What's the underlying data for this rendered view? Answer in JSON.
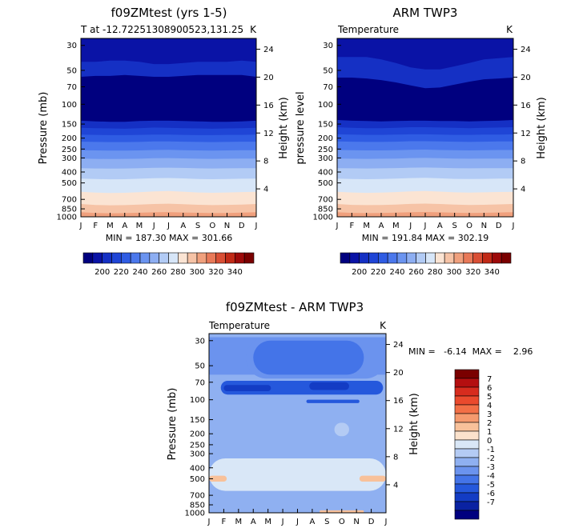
{
  "chart_data": [
    {
      "type": "heatmap",
      "title": "f09ZMtest (yrs 1-5)",
      "subtitle": "T at -12.72251308900523,131.25",
      "unit": "K",
      "ylabel": "Pressure (mb)",
      "ylabel_right": "Height (km)",
      "x_ticks": [
        "J",
        "F",
        "M",
        "A",
        "M",
        "J",
        "J",
        "A",
        "S",
        "O",
        "N",
        "D",
        "J"
      ],
      "pressure_ticks": [
        30,
        50,
        70,
        100,
        150,
        200,
        250,
        300,
        400,
        500,
        700,
        850,
        1000
      ],
      "height_ticks": [
        4,
        8,
        12,
        16,
        20,
        24
      ],
      "stats": "MIN = 187.30  MAX = 301.66",
      "min": 187.3,
      "max": 301.66,
      "contour_levels": [
        195,
        200,
        205,
        210,
        215,
        220,
        230,
        240,
        250,
        260,
        270,
        280,
        290,
        295
      ],
      "boundaries": [
        {
          "p": 26,
          "month_values": [
            26,
            26,
            26,
            26,
            26,
            26,
            26,
            26,
            26,
            26,
            26,
            26,
            26
          ]
        },
        {
          "p": 40,
          "month_values": [
            42,
            42,
            41,
            41,
            42,
            44,
            44,
            43,
            42,
            42,
            42,
            41,
            42
          ]
        },
        {
          "p": 55,
          "month_values": [
            57,
            56,
            56,
            55,
            56,
            57,
            57,
            56,
            55,
            55,
            55,
            55,
            57
          ]
        },
        {
          "p": 140,
          "month_values": [
            140,
            142,
            143,
            143,
            141,
            140,
            140,
            141,
            142,
            143,
            143,
            142,
            140
          ]
        },
        {
          "p": 160,
          "month_values": [
            162,
            163,
            164,
            165,
            163,
            161,
            162,
            163,
            164,
            165,
            164,
            163,
            162
          ]
        },
        {
          "p": 185,
          "month_values": [
            186,
            187,
            188,
            188,
            187,
            186,
            186,
            187,
            188,
            188,
            187,
            187,
            186
          ]
        },
        {
          "p": 215,
          "month_values": [
            215,
            216,
            217,
            217,
            216,
            214,
            214,
            215,
            216,
            217,
            216,
            215,
            215
          ]
        },
        {
          "p": 255,
          "month_values": [
            256,
            257,
            258,
            258,
            257,
            255,
            254,
            256,
            257,
            258,
            257,
            256,
            256
          ]
        },
        {
          "p": 305,
          "month_values": [
            304,
            306,
            307,
            306,
            305,
            302,
            301,
            303,
            305,
            306,
            305,
            304,
            304
          ]
        },
        {
          "p": 370,
          "month_values": [
            370,
            372,
            373,
            372,
            370,
            367,
            366,
            368,
            371,
            372,
            371,
            370,
            370
          ]
        },
        {
          "p": 460,
          "month_values": [
            458,
            462,
            464,
            463,
            459,
            454,
            452,
            456,
            461,
            463,
            461,
            459,
            458
          ]
        },
        {
          "p": 610,
          "month_values": [
            600,
            610,
            615,
            612,
            605,
            595,
            590,
            598,
            608,
            612,
            608,
            603,
            600
          ]
        },
        {
          "p": 780,
          "month_values": [
            770,
            785,
            790,
            788,
            780,
            770,
            765,
            772,
            782,
            788,
            784,
            778,
            770
          ]
        },
        {
          "p": 920,
          "month_values": [
            910,
            925,
            930,
            928,
            920,
            912,
            908,
            915,
            922,
            928,
            924,
            918,
            910
          ]
        }
      ]
    },
    {
      "type": "heatmap",
      "title": "ARM TWP3",
      "subtitle": "Temperature",
      "unit": "K",
      "ylabel": "pressure level",
      "ylabel_right": "Height (km)",
      "x_ticks": [
        "J",
        "F",
        "M",
        "A",
        "M",
        "J",
        "J",
        "A",
        "S",
        "O",
        "N",
        "D",
        "J"
      ],
      "pressure_ticks": [
        30,
        50,
        70,
        100,
        150,
        200,
        250,
        300,
        400,
        500,
        700,
        850,
        1000
      ],
      "height_ticks": [
        4,
        8,
        12,
        16,
        20,
        24
      ],
      "stats": "MIN = 191.84  MAX = 302.19",
      "min": 191.84,
      "max": 302.19,
      "contour_levels": [
        195,
        200,
        205,
        210,
        215,
        220,
        230,
        240,
        250,
        260,
        270,
        280,
        290,
        295
      ],
      "boundaries": [
        {
          "p": 26,
          "month_values": [
            26,
            26,
            26,
            26,
            26,
            26,
            26,
            26,
            26,
            26,
            26,
            26,
            26
          ]
        },
        {
          "p": 38,
          "month_values": [
            38,
            38,
            38,
            40,
            43,
            47,
            49,
            49,
            46,
            43,
            40,
            39,
            38
          ]
        },
        {
          "p": 58,
          "month_values": [
            58,
            58,
            59,
            61,
            64,
            68,
            72,
            71,
            67,
            63,
            60,
            59,
            58
          ]
        },
        {
          "p": 140,
          "month_values": [
            138,
            140,
            141,
            142,
            141,
            140,
            140,
            141,
            141,
            142,
            141,
            140,
            138
          ]
        },
        {
          "p": 160,
          "month_values": [
            160,
            162,
            163,
            163,
            162,
            160,
            160,
            161,
            162,
            163,
            162,
            161,
            160
          ]
        },
        {
          "p": 185,
          "month_values": [
            185,
            186,
            187,
            187,
            186,
            185,
            185,
            186,
            187,
            187,
            186,
            186,
            185
          ]
        },
        {
          "p": 215,
          "month_values": [
            214,
            215,
            216,
            216,
            215,
            213,
            213,
            214,
            215,
            216,
            215,
            214,
            214
          ]
        },
        {
          "p": 255,
          "month_values": [
            255,
            256,
            257,
            257,
            256,
            254,
            253,
            255,
            256,
            257,
            256,
            255,
            255
          ]
        },
        {
          "p": 305,
          "month_values": [
            304,
            305,
            306,
            305,
            304,
            301,
            300,
            302,
            304,
            305,
            304,
            304,
            304
          ]
        },
        {
          "p": 370,
          "month_values": [
            370,
            371,
            372,
            371,
            369,
            366,
            365,
            367,
            370,
            371,
            370,
            370,
            370
          ]
        },
        {
          "p": 460,
          "month_values": [
            458,
            461,
            463,
            462,
            458,
            453,
            451,
            455,
            460,
            462,
            460,
            458,
            458
          ]
        },
        {
          "p": 610,
          "month_values": [
            600,
            608,
            613,
            610,
            603,
            594,
            589,
            597,
            606,
            610,
            606,
            602,
            600
          ]
        },
        {
          "p": 780,
          "month_values": [
            770,
            783,
            788,
            786,
            778,
            768,
            763,
            770,
            780,
            786,
            782,
            776,
            770
          ]
        },
        {
          "p": 920,
          "month_values": [
            910,
            923,
            928,
            926,
            918,
            910,
            906,
            913,
            920,
            926,
            922,
            916,
            910
          ]
        }
      ]
    },
    {
      "type": "heatmap",
      "title": "f09ZMtest - ARM TWP3",
      "subtitle": "Temperature",
      "unit": "K",
      "ylabel": "Pressure (mb)",
      "ylabel_right": "Height (km)",
      "x_ticks": [
        "J",
        "F",
        "M",
        "A",
        "M",
        "J",
        "J",
        "A",
        "S",
        "O",
        "N",
        "D",
        "J"
      ],
      "pressure_ticks": [
        30,
        50,
        70,
        100,
        150,
        200,
        250,
        300,
        400,
        500,
        700,
        850,
        1000
      ],
      "height_ticks": [
        4,
        8,
        12,
        16,
        20,
        24
      ],
      "stats": "MIN =   -6.14  MAX =    2.96",
      "min": -6.14,
      "max": 2.96,
      "contour_levels": [
        -7,
        -6,
        -5,
        -4,
        -3,
        -2,
        -1,
        0,
        1,
        2,
        3,
        4,
        5,
        6,
        7
      ],
      "features": [
        {
          "level": -5,
          "months": [
            0.8,
            11.8
          ],
          "p": [
            68,
            90
          ]
        },
        {
          "level": -6,
          "months": [
            1.0,
            4.2
          ],
          "p": [
            74,
            84
          ]
        },
        {
          "level": -6,
          "months": [
            6.8,
            9.5
          ],
          "p": [
            70,
            82
          ]
        },
        {
          "level": -5,
          "months": [
            6.6,
            10.2
          ],
          "p": [
            100,
            107
          ]
        },
        {
          "level": -3,
          "months": [
            2.5,
            12.0
          ],
          "p": [
            28,
            65
          ]
        },
        {
          "level": -4,
          "months": [
            3.0,
            10.5
          ],
          "p": [
            30,
            60
          ]
        },
        {
          "level": -1,
          "months": [
            8.5,
            9.5
          ],
          "p": [
            160,
            210
          ]
        },
        {
          "level": 0,
          "months": [
            0.0,
            12.0
          ],
          "p": [
            330,
            640
          ]
        },
        {
          "level": 1,
          "months": [
            0.0,
            1.2
          ],
          "p": [
            470,
            530
          ]
        },
        {
          "level": 1,
          "months": [
            10.2,
            12.0
          ],
          "p": [
            470,
            530
          ]
        },
        {
          "level": 1,
          "months": [
            7.5,
            10.5
          ],
          "p": [
            950,
            1000
          ]
        }
      ]
    }
  ],
  "colorbar_top_left": {
    "labels": [
      "200",
      "220",
      "240",
      "260",
      "280",
      "300",
      "320",
      "340"
    ]
  },
  "colorbar_top_right": {
    "labels": [
      "200",
      "220",
      "240",
      "260",
      "280",
      "300",
      "320",
      "340"
    ]
  },
  "colorbar_diff": {
    "labels": [
      "7",
      "6",
      "5",
      "4",
      "3",
      "2",
      "1",
      "0",
      "-1",
      "-2",
      "-3",
      "-4",
      "-5",
      "-6",
      "-7"
    ]
  },
  "palette": {
    "abs": [
      "#00007f",
      "#0a13a6",
      "#1530c4",
      "#1f45d6",
      "#2f5ce3",
      "#4b78ec",
      "#6b94f0",
      "#8daef2",
      "#b2cbf5",
      "#d7e6f8",
      "#fbe4d3",
      "#f6c3a6",
      "#f0a07d",
      "#e87958",
      "#d94f35",
      "#c12a17",
      "#9d0a0a",
      "#7a0000"
    ],
    "diff": [
      "#7a0000",
      "#b40f10",
      "#d72c1e",
      "#ea4a2d",
      "#f26f46",
      "#f59a6e",
      "#f8c19a",
      "#fbe2cc",
      "#d9e7f7",
      "#b4cbf4",
      "#8fb0f1",
      "#6b93ee",
      "#4474e8",
      "#2558dc",
      "#133cc4",
      "#0a22a2",
      "#00007f"
    ]
  }
}
